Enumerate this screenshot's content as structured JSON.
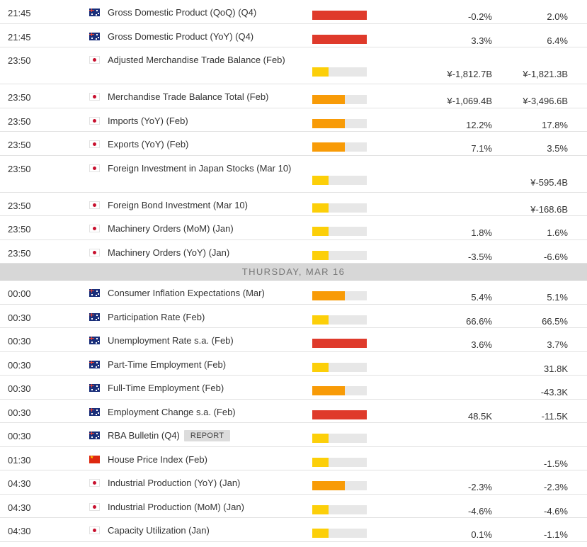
{
  "colors": {
    "impact_high": "#df3a2b",
    "impact_medium": "#f89b07",
    "impact_low": "#fccf09",
    "bar_track": "#e7e7e7",
    "day_divider": "#d7d7d7"
  },
  "events": [
    {
      "time": "21:45",
      "flag": "australia-flag-icon",
      "title": "Gross Domestic Product (QoQ) (Q4)",
      "impact": "high",
      "previous": "-0.2%",
      "actual": "2.0%"
    },
    {
      "time": "21:45",
      "flag": "australia-flag-icon",
      "title": "Gross Domestic Product (YoY) (Q4)",
      "impact": "high",
      "previous": "3.3%",
      "actual": "6.4%"
    },
    {
      "time": "23:50",
      "flag": "japan-flag-icon",
      "title": "Adjusted Merchandise Trade Balance (Feb)",
      "impact": "low",
      "previous": "¥-1,812.7B",
      "actual": "¥-1,821.3B",
      "tall": true
    },
    {
      "time": "23:50",
      "flag": "japan-flag-icon",
      "title": "Merchandise Trade Balance Total (Feb)",
      "impact": "medium",
      "previous": "¥-1,069.4B",
      "actual": "¥-3,496.6B"
    },
    {
      "time": "23:50",
      "flag": "japan-flag-icon",
      "title": "Imports (YoY) (Feb)",
      "impact": "medium",
      "previous": "12.2%",
      "actual": "17.8%"
    },
    {
      "time": "23:50",
      "flag": "japan-flag-icon",
      "title": "Exports (YoY) (Feb)",
      "impact": "medium",
      "previous": "7.1%",
      "actual": "3.5%"
    },
    {
      "time": "23:50",
      "flag": "japan-flag-icon",
      "title": "Foreign Investment in Japan Stocks (Mar 10)",
      "impact": "low",
      "previous": "",
      "actual": "¥-595.4B",
      "tall": true
    },
    {
      "time": "23:50",
      "flag": "japan-flag-icon",
      "title": "Foreign Bond Investment (Mar 10)",
      "impact": "low",
      "previous": "",
      "actual": "¥-168.6B"
    },
    {
      "time": "23:50",
      "flag": "japan-flag-icon",
      "title": "Machinery Orders (MoM) (Jan)",
      "impact": "low",
      "previous": "1.8%",
      "actual": "1.6%"
    },
    {
      "time": "23:50",
      "flag": "japan-flag-icon",
      "title": "Machinery Orders (YoY) (Jan)",
      "impact": "low",
      "previous": "-3.5%",
      "actual": "-6.6%"
    },
    {
      "divider": "THURSDAY, MAR 16"
    },
    {
      "time": "00:00",
      "flag": "australia-flag-icon",
      "title": "Consumer Inflation Expectations (Mar)",
      "impact": "medium",
      "previous": "5.4%",
      "actual": "5.1%"
    },
    {
      "time": "00:30",
      "flag": "australia-flag-icon",
      "title": "Participation Rate (Feb)",
      "impact": "low",
      "previous": "66.6%",
      "actual": "66.5%"
    },
    {
      "time": "00:30",
      "flag": "australia-flag-icon",
      "title": "Unemployment Rate s.a. (Feb)",
      "impact": "high",
      "previous": "3.6%",
      "actual": "3.7%"
    },
    {
      "time": "00:30",
      "flag": "australia-flag-icon",
      "title": "Part-Time Employment (Feb)",
      "impact": "low",
      "previous": "",
      "actual": "31.8K"
    },
    {
      "time": "00:30",
      "flag": "australia-flag-icon",
      "title": "Full-Time Employment (Feb)",
      "impact": "medium",
      "previous": "",
      "actual": "-43.3K"
    },
    {
      "time": "00:30",
      "flag": "australia-flag-icon",
      "title": "Employment Change s.a. (Feb)",
      "impact": "high",
      "previous": "48.5K",
      "actual": "-11.5K"
    },
    {
      "time": "00:30",
      "flag": "australia-flag-icon",
      "title": "RBA Bulletin (Q4)",
      "impact": "low",
      "previous": "",
      "actual": "",
      "badge": "REPORT"
    },
    {
      "time": "01:30",
      "flag": "china-flag-icon",
      "title": "House Price Index (Feb)",
      "impact": "low",
      "previous": "",
      "actual": "-1.5%"
    },
    {
      "time": "04:30",
      "flag": "japan-flag-icon",
      "title": "Industrial Production (YoY) (Jan)",
      "impact": "medium",
      "previous": "-2.3%",
      "actual": "-2.3%"
    },
    {
      "time": "04:30",
      "flag": "japan-flag-icon",
      "title": "Industrial Production (MoM) (Jan)",
      "impact": "low",
      "previous": "-4.6%",
      "actual": "-4.6%"
    },
    {
      "time": "04:30",
      "flag": "japan-flag-icon",
      "title": "Capacity Utilization (Jan)",
      "impact": "low",
      "previous": "0.1%",
      "actual": "-1.1%"
    }
  ],
  "impact_fill": {
    "high": 1.0,
    "medium": 0.6,
    "low": 0.3
  }
}
